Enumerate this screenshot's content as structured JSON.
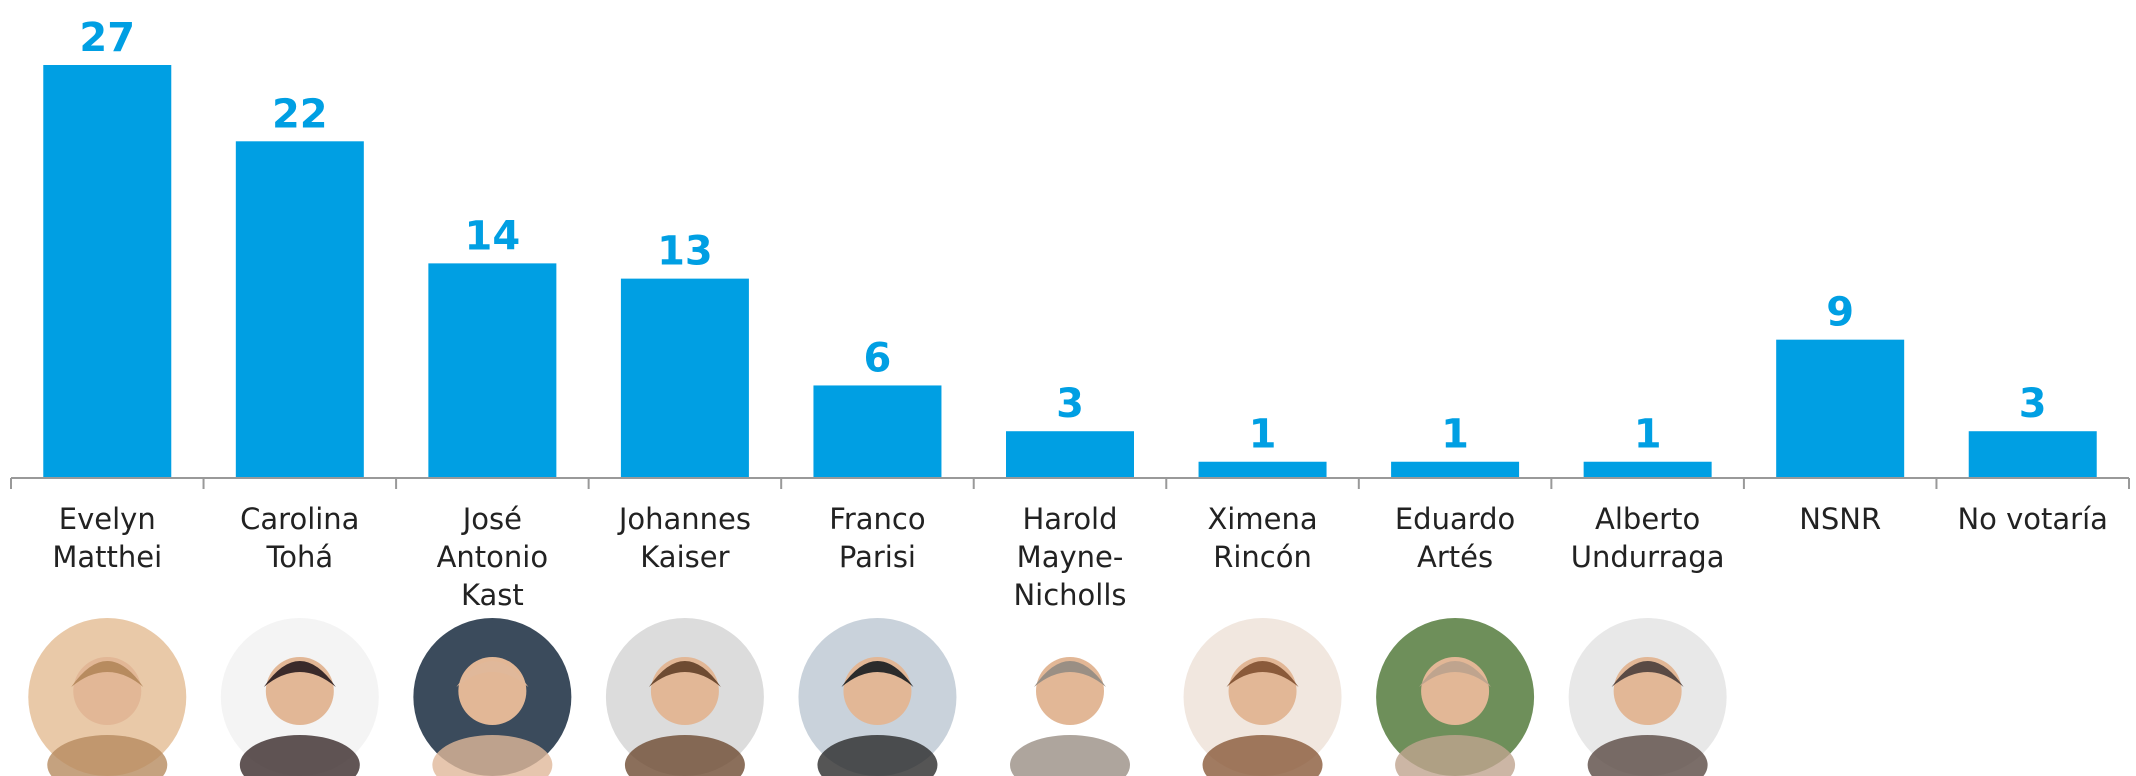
{
  "chart_data": {
    "type": "bar",
    "categories": [
      "Evelyn Matthei",
      "Carolina Tohá",
      "José Antonio Kast",
      "Johannes Kaiser",
      "Franco Parisi",
      "Harold Mayne-Nicholls",
      "Ximena Rincón",
      "Eduardo Artés",
      "Alberto Undurraga",
      "NSNR",
      "No votaría"
    ],
    "values": [
      27,
      22,
      14,
      13,
      6,
      3,
      1,
      1,
      1,
      9,
      3
    ],
    "color": "#009fe3"
  }
}
